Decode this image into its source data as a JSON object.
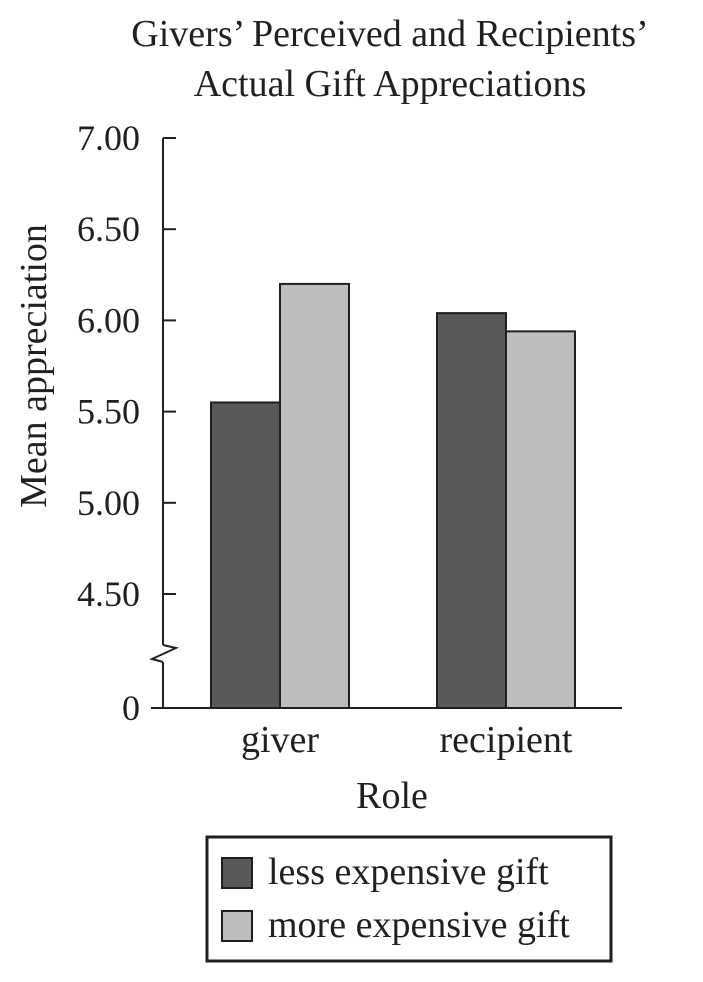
{
  "chart_data": {
    "type": "bar",
    "title": [
      "Givers’ Perceived and Recipients’",
      "Actual Gift Appreciations"
    ],
    "xlabel": "Role",
    "ylabel": "Mean appreciation",
    "categories": [
      "giver",
      "recipient"
    ],
    "series": [
      {
        "name": "less expensive gift",
        "values": [
          5.55,
          6.04
        ],
        "color": "#58595b"
      },
      {
        "name": "more expensive gift",
        "values": [
          6.2,
          5.94
        ],
        "color": "#bcbec0"
      }
    ],
    "ylim": [
      4.4,
      7.0
    ],
    "axis_break": true,
    "yticks": [
      {
        "value": 7.0,
        "label": "7.00"
      },
      {
        "value": 6.5,
        "label": "6.50"
      },
      {
        "value": 6.0,
        "label": "6.00"
      },
      {
        "value": 5.5,
        "label": "5.50"
      },
      {
        "value": 5.0,
        "label": "5.00"
      },
      {
        "value": 4.5,
        "label": "4.50"
      }
    ],
    "baseline_label": "0",
    "grid": false,
    "legend_position": "bottom"
  }
}
